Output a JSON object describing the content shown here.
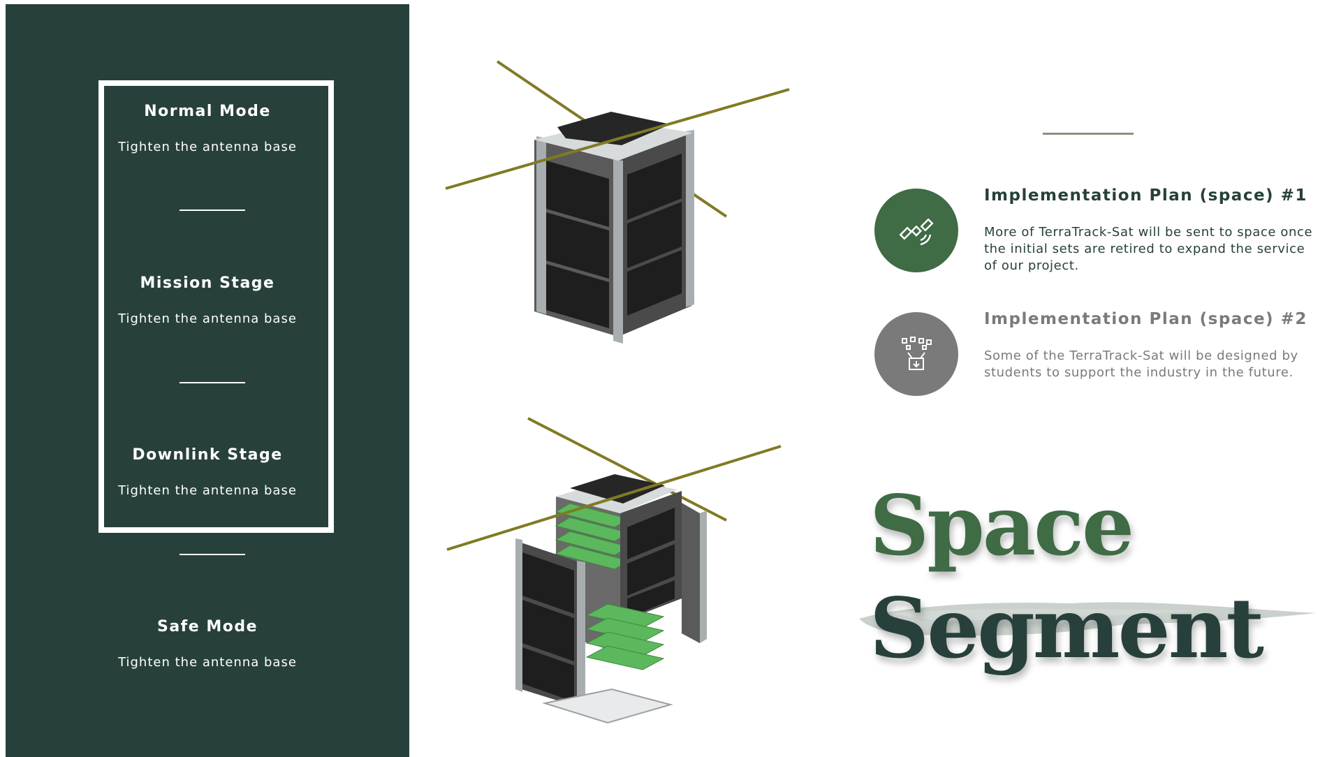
{
  "modes": [
    {
      "title": "Normal Mode",
      "desc": "Tighten the antenna base"
    },
    {
      "title": "Mission Stage",
      "desc": "Tighten the antenna base"
    },
    {
      "title": "Downlink Stage",
      "desc": "Tighten the antenna base"
    },
    {
      "title": "Safe Mode",
      "desc": "Tighten the antenna base"
    }
  ],
  "plans": [
    {
      "title": "Implementation Plan (space) #1",
      "desc": "More of TerraTrack-Sat will be sent to space once the initial sets are retired to expand the service of our project.",
      "icon": "satellite-icon",
      "color": "#3f6b45",
      "text_color": "#27403b"
    },
    {
      "title": "Implementation Plan (space) #2",
      "desc": "Some of the TerraTrack-Sat will be designed by students to support the industry in the future.",
      "icon": "data-upload-icon",
      "color": "#7a7a7a",
      "text_color": "#7a7a7a"
    }
  ],
  "heading": {
    "line1": "Space",
    "line2": "Segment"
  },
  "colors": {
    "panel": "#27403b",
    "accent_green": "#3f6b45",
    "dark_green": "#27403b",
    "antenna": "#807a24",
    "board": "#5cb85c"
  }
}
